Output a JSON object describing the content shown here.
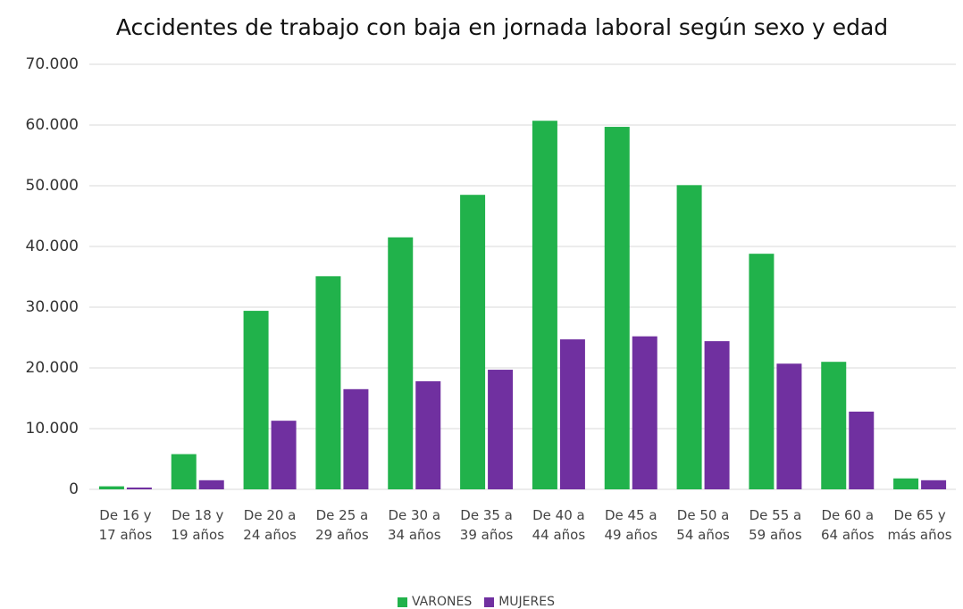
{
  "chart_data": {
    "type": "bar",
    "title": "Accidentes de trabajo con baja en jornada laboral según sexo y edad",
    "categories": [
      "De 16 y 17 años",
      "De 18 y 19 años",
      "De 20 a 24 años",
      "De 25 a 29 años",
      "De 30 a 34 años",
      "De 35 a 39 años",
      "De 40 a 44 años",
      "De 45 a 49 años",
      "De 50 a 54 años",
      "De 55 a 59 años",
      "De 60 a 64 años",
      "De 65 y más años"
    ],
    "series": [
      {
        "name": "VARONES",
        "color": "#21b24b",
        "values": [
          500,
          5800,
          29400,
          35100,
          41500,
          48500,
          60700,
          59700,
          50100,
          38800,
          21000,
          1800
        ]
      },
      {
        "name": "MUJERES",
        "color": "#7030a0",
        "values": [
          300,
          1500,
          11300,
          16500,
          17800,
          19700,
          24700,
          25200,
          24400,
          20700,
          12800,
          1500
        ]
      }
    ],
    "ylim": [
      0,
      70000
    ],
    "yticks": [
      0,
      {
        "value": 10000,
        "label": "10.000"
      },
      {
        "value": 20000,
        "label": "20.000"
      },
      {
        "value": 30000,
        "label": "30.000"
      },
      {
        "value": 40000,
        "label": "40.000"
      },
      {
        "value": 50000,
        "label": "50.000"
      },
      {
        "value": 60000,
        "label": "60.000"
      },
      {
        "value": 70000,
        "label": "70.000"
      }
    ],
    "grid": true,
    "legend": "bottom"
  }
}
